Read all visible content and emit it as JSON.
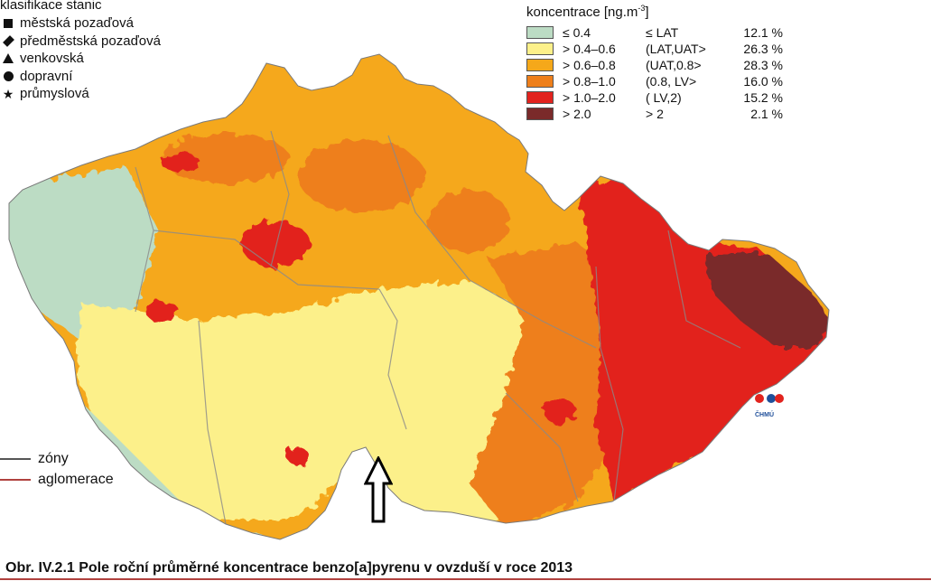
{
  "station_legend": {
    "title": "klasifikace stanic",
    "items": [
      {
        "symbol": "square",
        "label": "městská pozaďová"
      },
      {
        "symbol": "diamond",
        "label": "předměstská pozaďová"
      },
      {
        "symbol": "triangle",
        "label": "venkovská"
      },
      {
        "symbol": "circle",
        "label": "dopravní"
      },
      {
        "symbol": "star",
        "label": "průmyslová"
      }
    ]
  },
  "concentration_legend": {
    "title": "koncentrace [ng.m",
    "title_exp": "-3",
    "title_end": "]",
    "items": [
      {
        "range": "≤ 0.4",
        "label": "≤ LAT",
        "pct": "12.1 %",
        "color": "#bcdcc4"
      },
      {
        "range": "> 0.4–0.6",
        "label": "(LAT,UAT>",
        "pct": "26.3 %",
        "color": "#fcf08a"
      },
      {
        "range": "> 0.6–0.8",
        "label": "(UAT,0.8>",
        "pct": "28.3 %",
        "color": "#f5a81a"
      },
      {
        "range": "> 0.8–1.0",
        "label": "(0.8, LV>",
        "pct": "16.0 %",
        "color": "#ee7f1b"
      },
      {
        "range": "> 1.0–2.0",
        "label": "( LV,2)",
        "pct": "15.2 %",
        "color": "#e2231e"
      },
      {
        "range": "> 2.0",
        "label": "> 2",
        "pct": "2.1 %",
        "color": "#7a2a2a"
      }
    ]
  },
  "zone_legend": {
    "items": [
      {
        "label": "zóny",
        "color": "#555555"
      },
      {
        "label": "aglomerace",
        "color": "#b0413e"
      }
    ]
  },
  "logo": {
    "text": "ČHMÚ"
  },
  "caption": "Obr. IV.2.1  Pole roční průměrné koncentrace benzo[a]pyrenu v ovzduší v roce 2013"
}
